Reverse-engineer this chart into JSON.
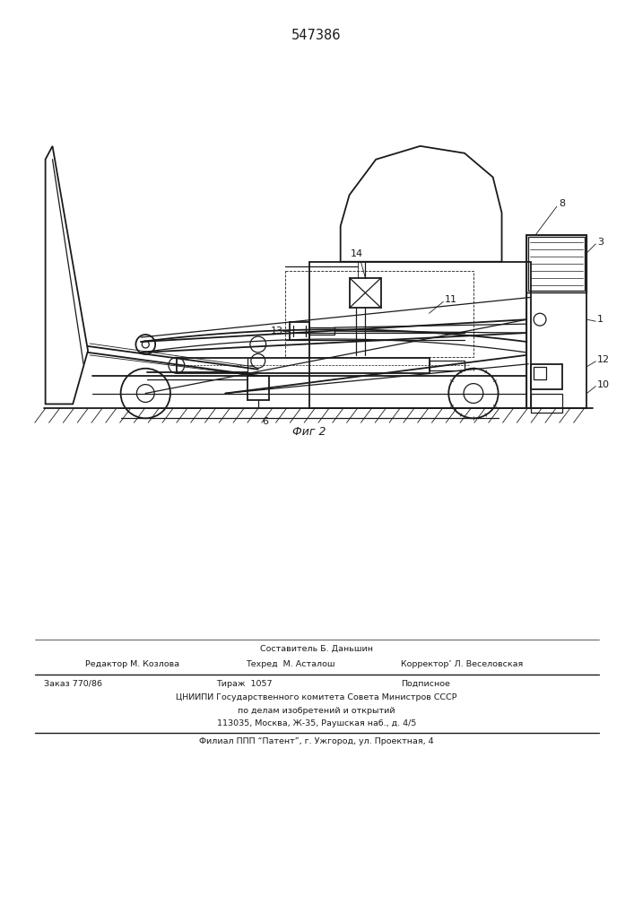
{
  "patent_number": "547386",
  "fig_label": "Фиг 2",
  "fig_num": "6",
  "bg": "#ffffff",
  "lc": "#1a1a1a",
  "footer": {
    "sestavitel": "Составитель Б. Даньшин",
    "redaktor": "Редактор М. Козлова",
    "tehred": "Техред  М. Асталош",
    "korrektor": "Корректор’ Л. Веселовская",
    "zakaz": "Заказ 770/86",
    "tirazh": "Тираж  1057",
    "podpisnoe": "Подписное",
    "cniipи": "ЦНИИПИ Государственного комитета Совета Министров СССР",
    "po_delam": "по делам изобретений и открытий",
    "address": "113035, Москва, Ж-35, Раушская наб., д. 4/5",
    "filial": "Филиал ППП “Патент”, г. Ужгород, ул. Проектная, 4"
  }
}
